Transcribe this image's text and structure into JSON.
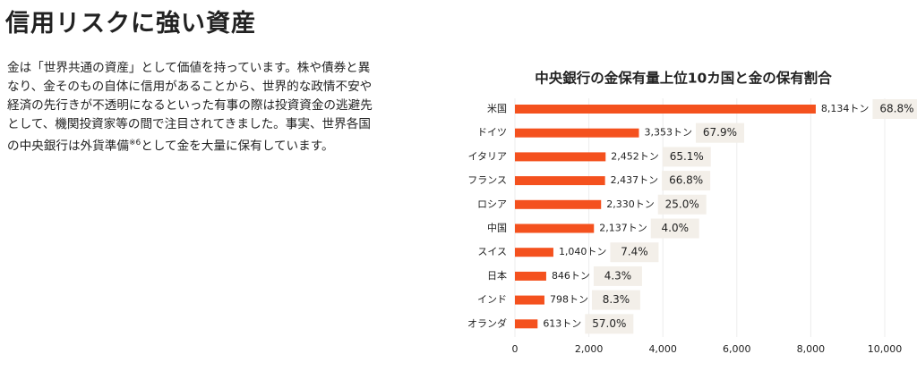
{
  "header": {
    "title": "信用リスクに強い資産"
  },
  "body": {
    "text_before": "金は「世界共通の資産」として価値を持っています。株や債券と異なり、金そのもの自体に信用があることから、世界的な政情不安や経済の先行きが不透明になるといった有事の際は投資資金の逃避先として、機関投資家等の間で注目されてきました。事実、世界各国の中央銀行は外貨準備",
    "note_mark": "※6",
    "text_after": "として金を大量に保有しています。"
  },
  "chart_data": {
    "type": "bar",
    "orientation": "horizontal",
    "title": "中央銀行の金保有量上位10カ国と金の保有割合",
    "categories": [
      "米国",
      "ドイツ",
      "イタリア",
      "フランス",
      "ロシア",
      "中国",
      "スイス",
      "日本",
      "インド",
      "オランダ"
    ],
    "values": [
      8134,
      3353,
      2452,
      2437,
      2330,
      2137,
      1040,
      846,
      798,
      613
    ],
    "value_labels": [
      "8,134トン",
      "3,353トン",
      "2,452トン",
      "2,437トン",
      "2,330トン",
      "2,137トン",
      "1,040トン",
      "846トン",
      "798トン",
      "613トン"
    ],
    "shares": {
      "values": [
        68.8,
        67.9,
        65.1,
        66.8,
        25.0,
        4.0,
        7.4,
        4.3,
        8.3,
        57.0
      ],
      "value_labels": [
        "68.8%",
        "67.9%",
        "65.1%",
        "66.8%",
        "25.0%",
        "4.0%",
        "7.4%",
        "4.3%",
        "8.3%",
        "57.0%"
      ]
    },
    "color": "#f4511e",
    "xlim": [
      0,
      10000
    ],
    "xticks": [
      0,
      {
        "value": 2000,
        "label": "2,000"
      },
      {
        "value": 4000,
        "label": "4,000"
      },
      {
        "value": 6000,
        "label": "6,000"
      },
      {
        "value": 8000,
        "label": "8,000"
      },
      {
        "value": 10000,
        "label": "10,000"
      }
    ],
    "grid": true
  }
}
